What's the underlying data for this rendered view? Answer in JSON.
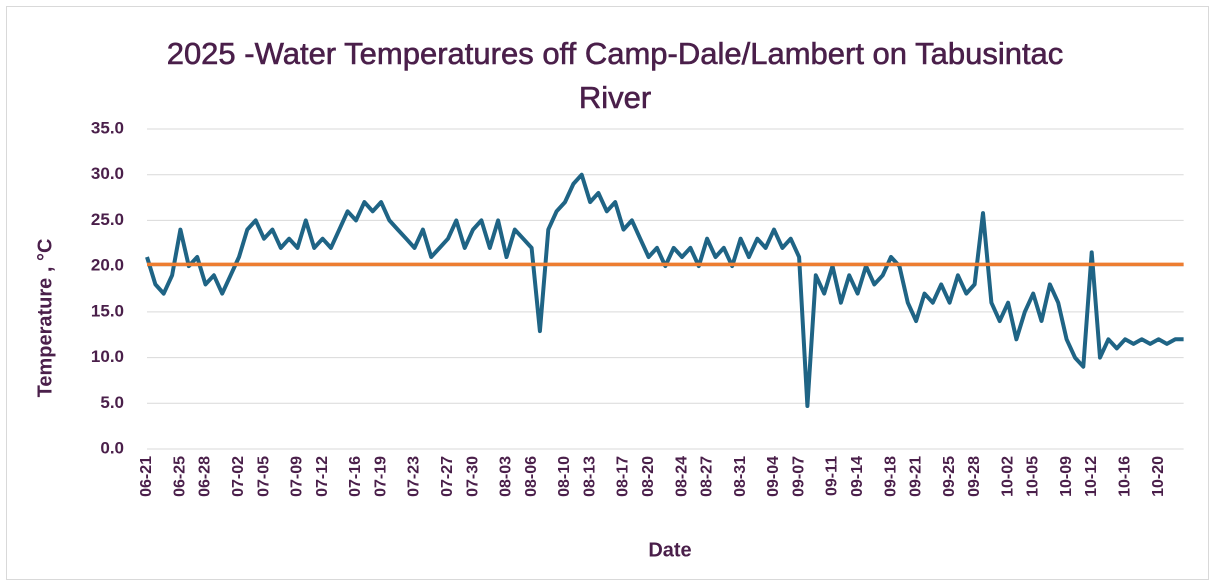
{
  "chart_data": {
    "type": "line",
    "title": "2025 -Water Temperatures off Camp-Dale/Lambert on Tabusintac River",
    "x_label": "Date",
    "y_label": "Temperature , °C",
    "categories": [
      "06-21",
      null,
      null,
      null,
      "06-25",
      null,
      null,
      "06-28",
      null,
      null,
      null,
      "07-02",
      null,
      null,
      "07-05",
      null,
      null,
      null,
      "07-09",
      null,
      null,
      "07-12",
      null,
      null,
      null,
      "07-16",
      null,
      null,
      "07-19",
      null,
      null,
      null,
      "07-23",
      null,
      null,
      null,
      "07-27",
      null,
      null,
      "07-30",
      null,
      null,
      null,
      "08-03",
      null,
      null,
      "08-06",
      null,
      null,
      null,
      "08-10",
      null,
      null,
      "08-13",
      null,
      null,
      null,
      "08-17",
      null,
      null,
      "08-20",
      null,
      null,
      null,
      "08-24",
      null,
      null,
      "08-27",
      null,
      null,
      null,
      "08-31",
      null,
      null,
      null,
      "09-04",
      null,
      null,
      "09-07",
      null,
      null,
      null,
      "09-11",
      null,
      null,
      "09-14",
      null,
      null,
      null,
      "09-18",
      null,
      null,
      "09-21",
      null,
      null,
      null,
      "09-25",
      null,
      null,
      "09-28",
      null,
      null,
      null,
      "10-02",
      null,
      null,
      "10-05",
      null,
      null,
      null,
      "10-09",
      null,
      null,
      "10-12",
      null,
      null,
      null,
      "10-16",
      null,
      null,
      null,
      "10-20",
      null,
      null,
      null
    ],
    "series": [
      {
        "color": "#1f6485",
        "values": [
          21,
          18,
          17,
          19,
          24,
          20,
          21,
          18,
          19,
          17,
          19,
          21,
          24,
          25,
          23,
          24,
          22,
          23,
          22,
          25,
          22,
          23,
          22,
          24,
          26,
          25,
          27,
          26,
          27,
          25,
          24,
          23,
          22,
          24,
          21,
          22,
          23,
          25,
          22,
          24,
          25,
          22,
          25,
          21,
          24,
          23,
          22,
          12.9,
          24,
          26,
          27,
          29,
          30,
          27,
          28,
          26,
          27,
          24,
          25,
          23,
          21,
          22,
          20,
          22,
          21,
          22,
          20,
          23,
          21,
          22,
          20,
          23,
          21,
          23,
          22,
          24,
          22,
          23,
          21,
          4.7,
          19,
          17,
          20,
          16,
          19,
          17,
          20,
          18,
          19,
          21,
          20,
          16,
          14,
          17,
          16,
          18,
          16,
          19,
          17,
          18,
          25.8,
          16,
          14,
          16,
          12,
          15,
          17,
          14,
          18,
          16,
          12,
          10,
          9,
          21.5,
          10,
          12,
          11,
          12,
          11.5,
          12,
          11.5,
          12,
          11.5,
          12,
          12
        ]
      }
    ],
    "reference_line": {
      "value": 20.2,
      "color": "#ed7d31"
    },
    "ylim": [
      0,
      35
    ],
    "yticks": [
      {
        "value": 0,
        "label": "0.0"
      },
      {
        "value": 5,
        "label": "5.0"
      },
      {
        "value": 10,
        "label": "10.0"
      },
      {
        "value": 15,
        "label": "15.0"
      },
      {
        "value": 20,
        "label": "20.0"
      },
      {
        "value": 25,
        "label": "25.0"
      },
      {
        "value": 30,
        "label": "30.0"
      },
      {
        "value": 35,
        "label": "35.0"
      }
    ],
    "grid": true
  }
}
